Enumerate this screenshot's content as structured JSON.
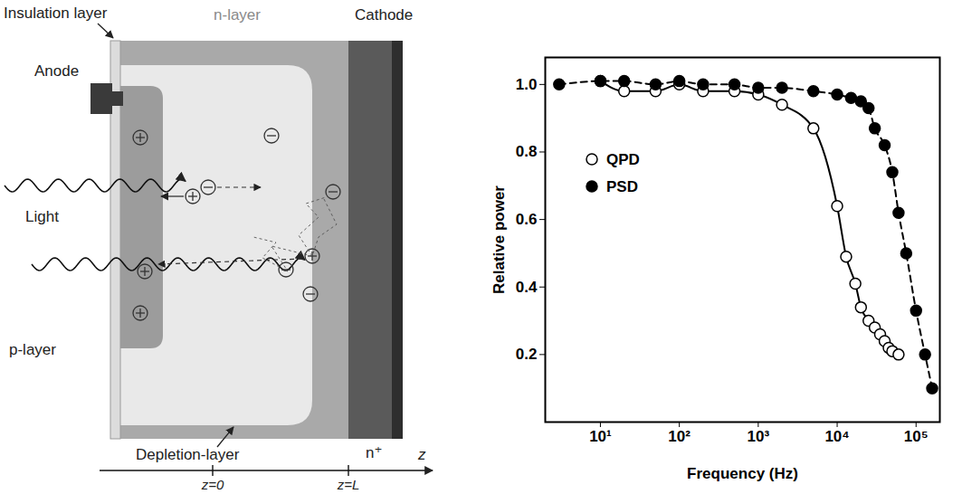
{
  "diagram": {
    "labels": {
      "insulation_layer": "Insulation layer",
      "n_layer": "n-layer",
      "cathode": "Cathode",
      "anode": "Anode",
      "light": "Light",
      "p_layer": "p-layer",
      "depletion_layer": "Depletion-layer",
      "n_plus": "n⁺"
    },
    "axis": {
      "label": "z",
      "ticks": [
        "z=0",
        "z=L"
      ]
    }
  },
  "chart_data": {
    "type": "line",
    "xlabel": "Frequency (Hz)",
    "ylabel": "Relative power",
    "log": "x",
    "xlim": [
      2,
      200000
    ],
    "xticks": [
      {
        "value": 10,
        "label": "10¹"
      },
      {
        "value": 100,
        "label": "10²"
      },
      {
        "value": 1000,
        "label": "10³"
      },
      {
        "value": 10000,
        "label": "10⁴"
      },
      {
        "value": 100000,
        "label": "10⁵"
      }
    ],
    "ylim": [
      0,
      1.08
    ],
    "yticks": [
      0.2,
      0.4,
      0.6,
      0.8,
      {
        "value": 1,
        "label": "1.0"
      }
    ],
    "legend": "upper left",
    "series": [
      {
        "name": "QPD",
        "color": "#000000",
        "marker": "open circle",
        "line_style": "solid",
        "x": [
          10,
          20,
          50,
          100,
          200,
          500,
          1000,
          2000,
          5000,
          10000,
          13000,
          17000,
          20000,
          25000,
          30000,
          35000,
          40000,
          45000,
          50000,
          60000
        ],
        "values": [
          1.01,
          0.98,
          0.98,
          1.0,
          0.98,
          0.98,
          0.97,
          0.94,
          0.87,
          0.64,
          0.49,
          0.41,
          0.34,
          0.3,
          0.28,
          0.26,
          0.24,
          0.22,
          0.21,
          0.2
        ]
      },
      {
        "name": "PSD",
        "color": "#000000",
        "marker": "filled circle",
        "line_style": "dashed",
        "x": [
          3,
          10,
          20,
          50,
          100,
          200,
          500,
          1000,
          2000,
          5000,
          10000,
          15000,
          20000,
          25000,
          30000,
          40000,
          50000,
          60000,
          75000,
          100000,
          130000,
          160000
        ],
        "values": [
          1.0,
          1.01,
          1.01,
          1.0,
          1.01,
          1.0,
          1.0,
          0.99,
          0.99,
          0.98,
          0.97,
          0.96,
          0.95,
          0.93,
          0.87,
          0.82,
          0.74,
          0.62,
          0.5,
          0.33,
          0.2,
          0.1
        ]
      }
    ]
  }
}
